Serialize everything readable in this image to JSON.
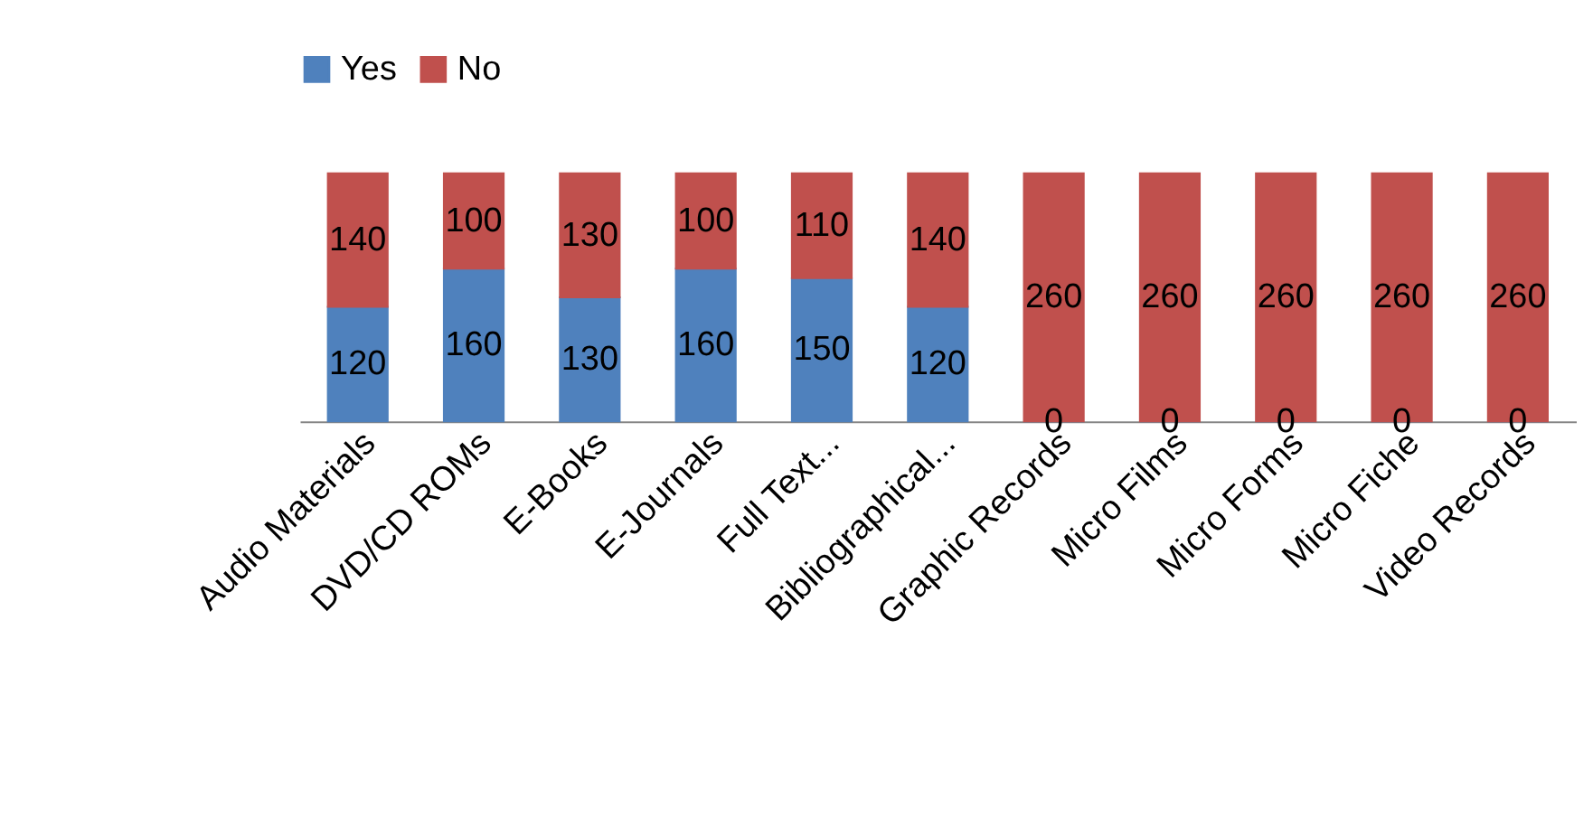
{
  "chart_data": {
    "type": "bar",
    "stacked": true,
    "data_labels": true,
    "legend": "top",
    "categories": [
      "Audio Materials",
      "DVD/CD ROMs",
      "E-Books",
      "E-Journals",
      "Full Text...",
      "Bibliographical...",
      "Graphic Records",
      "Micro Films",
      "Micro Forms",
      "Micro Fiche",
      "Video Records"
    ],
    "series": [
      {
        "name": "Yes",
        "color": "#4f81bd",
        "values": [
          120,
          160,
          130,
          160,
          150,
          120,
          0,
          0,
          0,
          0,
          0
        ]
      },
      {
        "name": "No",
        "color": "#c0504d",
        "values": [
          140,
          100,
          130,
          100,
          110,
          140,
          260,
          260,
          260,
          260,
          260
        ]
      }
    ]
  }
}
